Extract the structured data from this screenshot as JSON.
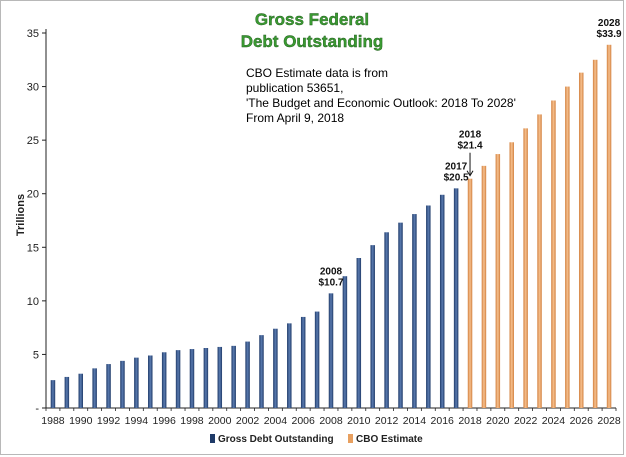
{
  "chart_data": {
    "type": "bar",
    "title_line1": "Gross Federal",
    "title_line2": "Debt Outstanding",
    "note": [
      "CBO Estimate  data is from",
      "publication 53651,",
      "'The Budget and Economic Outlook: 2018 To 2028'",
      "From April 9, 2018"
    ],
    "ylabel": "Trillions",
    "ylim": [
      0,
      35
    ],
    "yticks": [
      {
        "value": 0,
        "label": "-"
      },
      {
        "value": 5,
        "label": "5"
      },
      {
        "value": 10,
        "label": "10"
      },
      {
        "value": 15,
        "label": "15"
      },
      {
        "value": 20,
        "label": "20"
      },
      {
        "value": 25,
        "label": "25"
      },
      {
        "value": 30,
        "label": "30"
      },
      {
        "value": 35,
        "label": "35"
      }
    ],
    "xtick_labels": [
      "1988",
      "1990",
      "1992",
      "1994",
      "1996",
      "1998",
      "2000",
      "2002",
      "2004",
      "2006",
      "2008",
      "2010",
      "2012",
      "2014",
      "2016",
      "2018",
      "2020",
      "2022",
      "2024",
      "2026",
      "2028"
    ],
    "colors": {
      "actual": "#1f3a68",
      "estimate": "#e8a060",
      "title": "#3a9a32"
    },
    "series": [
      {
        "name": "Gross Debt Outstanding",
        "x": [
          1988,
          1989,
          1990,
          1991,
          1992,
          1993,
          1994,
          1995,
          1996,
          1997,
          1998,
          1999,
          2000,
          2001,
          2002,
          2003,
          2004,
          2005,
          2006,
          2007,
          2008,
          2009,
          2010,
          2011,
          2012,
          2013,
          2014,
          2015,
          2016,
          2017
        ],
        "values": [
          2.6,
          2.9,
          3.2,
          3.7,
          4.1,
          4.4,
          4.7,
          4.9,
          5.2,
          5.4,
          5.5,
          5.6,
          5.7,
          5.8,
          6.2,
          6.8,
          7.4,
          7.9,
          8.5,
          9.0,
          10.7,
          12.3,
          14.0,
          15.2,
          16.4,
          17.3,
          18.1,
          18.9,
          19.9,
          20.5
        ]
      },
      {
        "name": "CBO Estimate",
        "x": [
          2018,
          2019,
          2020,
          2021,
          2022,
          2023,
          2024,
          2025,
          2026,
          2027,
          2028
        ],
        "values": [
          21.4,
          22.6,
          23.7,
          24.8,
          26.1,
          27.4,
          28.7,
          30.0,
          31.3,
          32.5,
          33.9
        ]
      }
    ],
    "annotations": [
      {
        "year": 2008,
        "line1": "2008",
        "line2": "$10.7"
      },
      {
        "year": 2017,
        "line1": "2017",
        "line2": "$20.5"
      },
      {
        "year": 2018,
        "line1": "2018",
        "line2": "$21.4"
      },
      {
        "year": 2028,
        "line1": "2028",
        "line2": "$33.9"
      }
    ]
  }
}
